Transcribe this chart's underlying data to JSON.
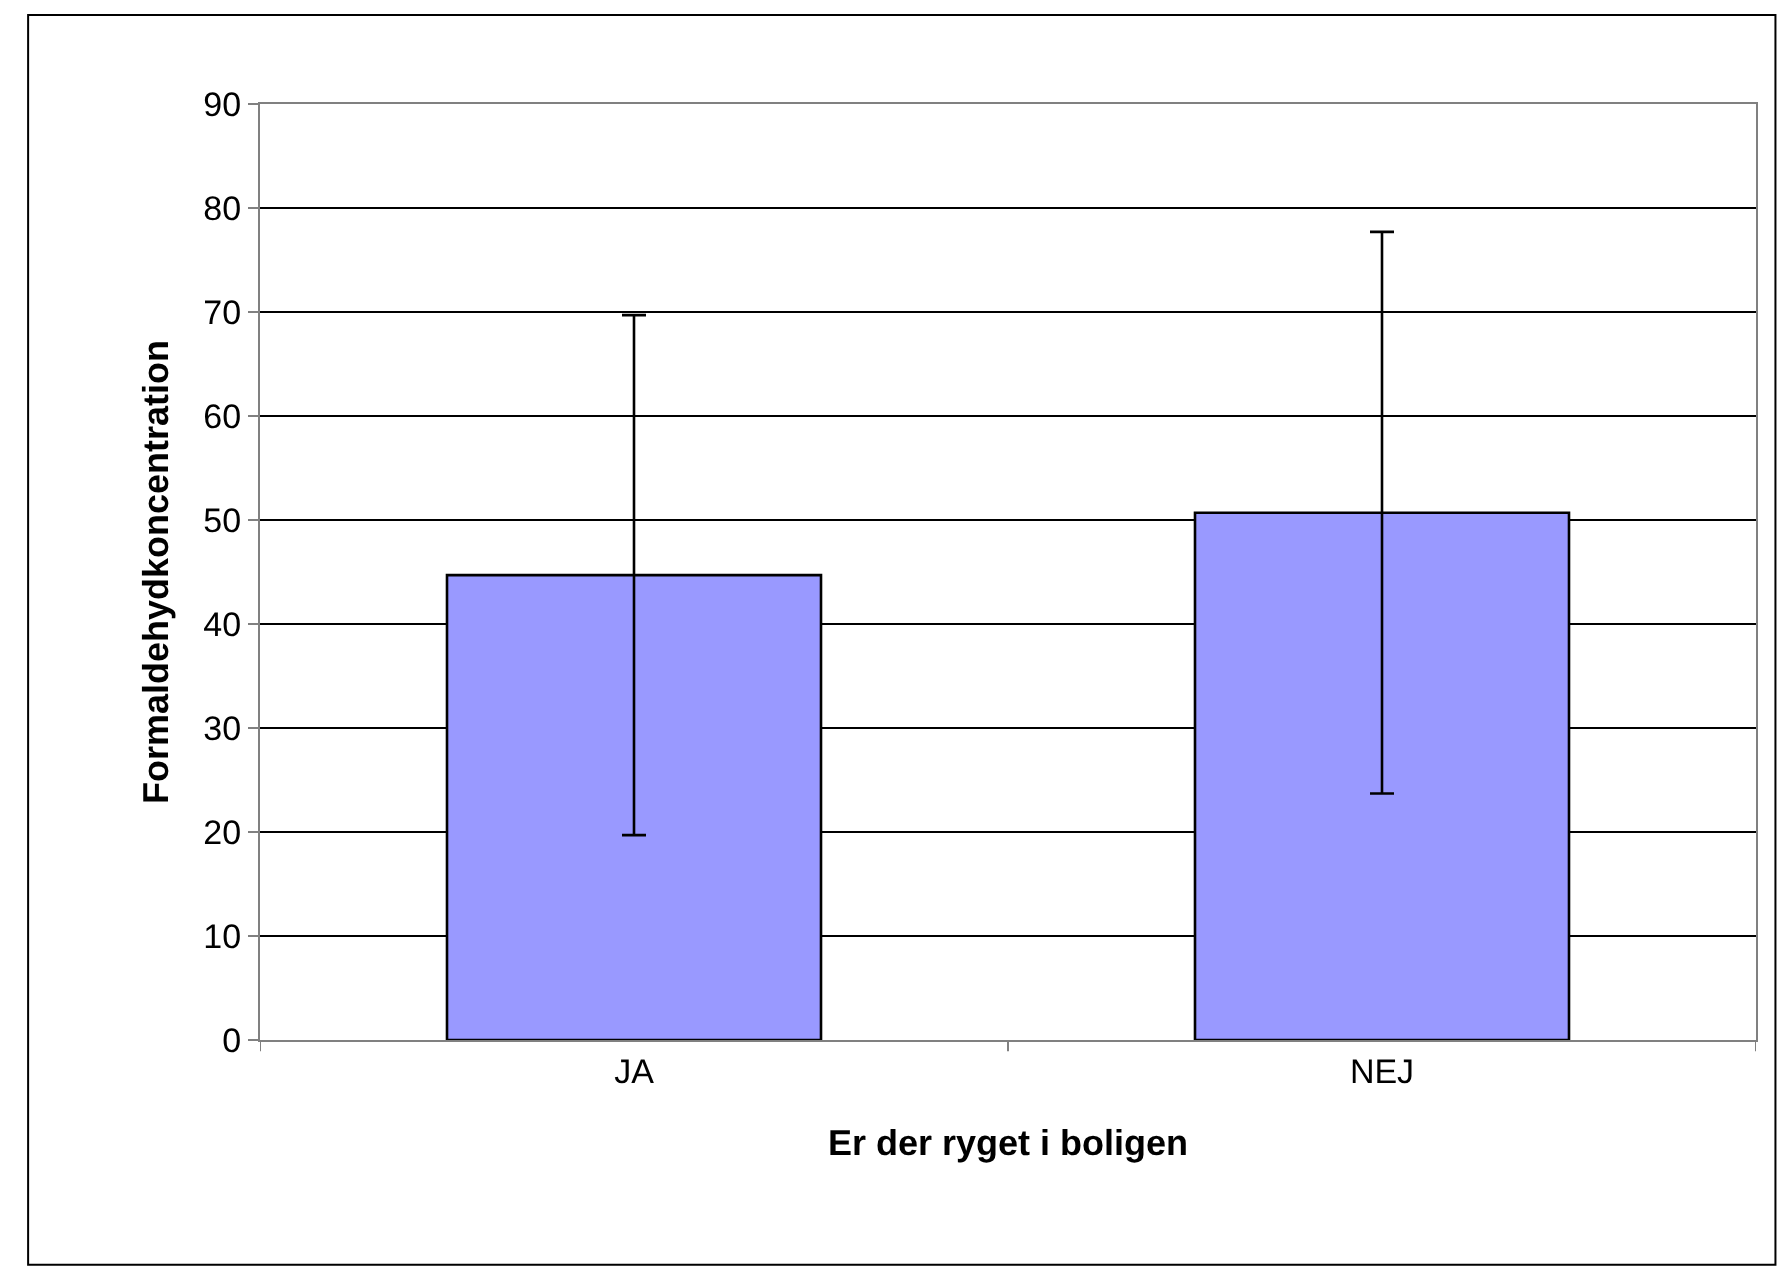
{
  "chart_data": {
    "type": "bar",
    "xlabel": "Er der ryget i boligen",
    "ylabel": "Formaldehydkoncentration",
    "categories": [
      "JA",
      "NEJ"
    ],
    "series": [
      {
        "color": "#9999ff",
        "values": [
          44.7,
          50.7
        ],
        "errors": [
          25,
          27
        ]
      }
    ],
    "ylim": [
      0,
      90
    ],
    "yticks": [
      0,
      10,
      20,
      30,
      40,
      50,
      60,
      70,
      80,
      90
    ],
    "grid": "y"
  }
}
